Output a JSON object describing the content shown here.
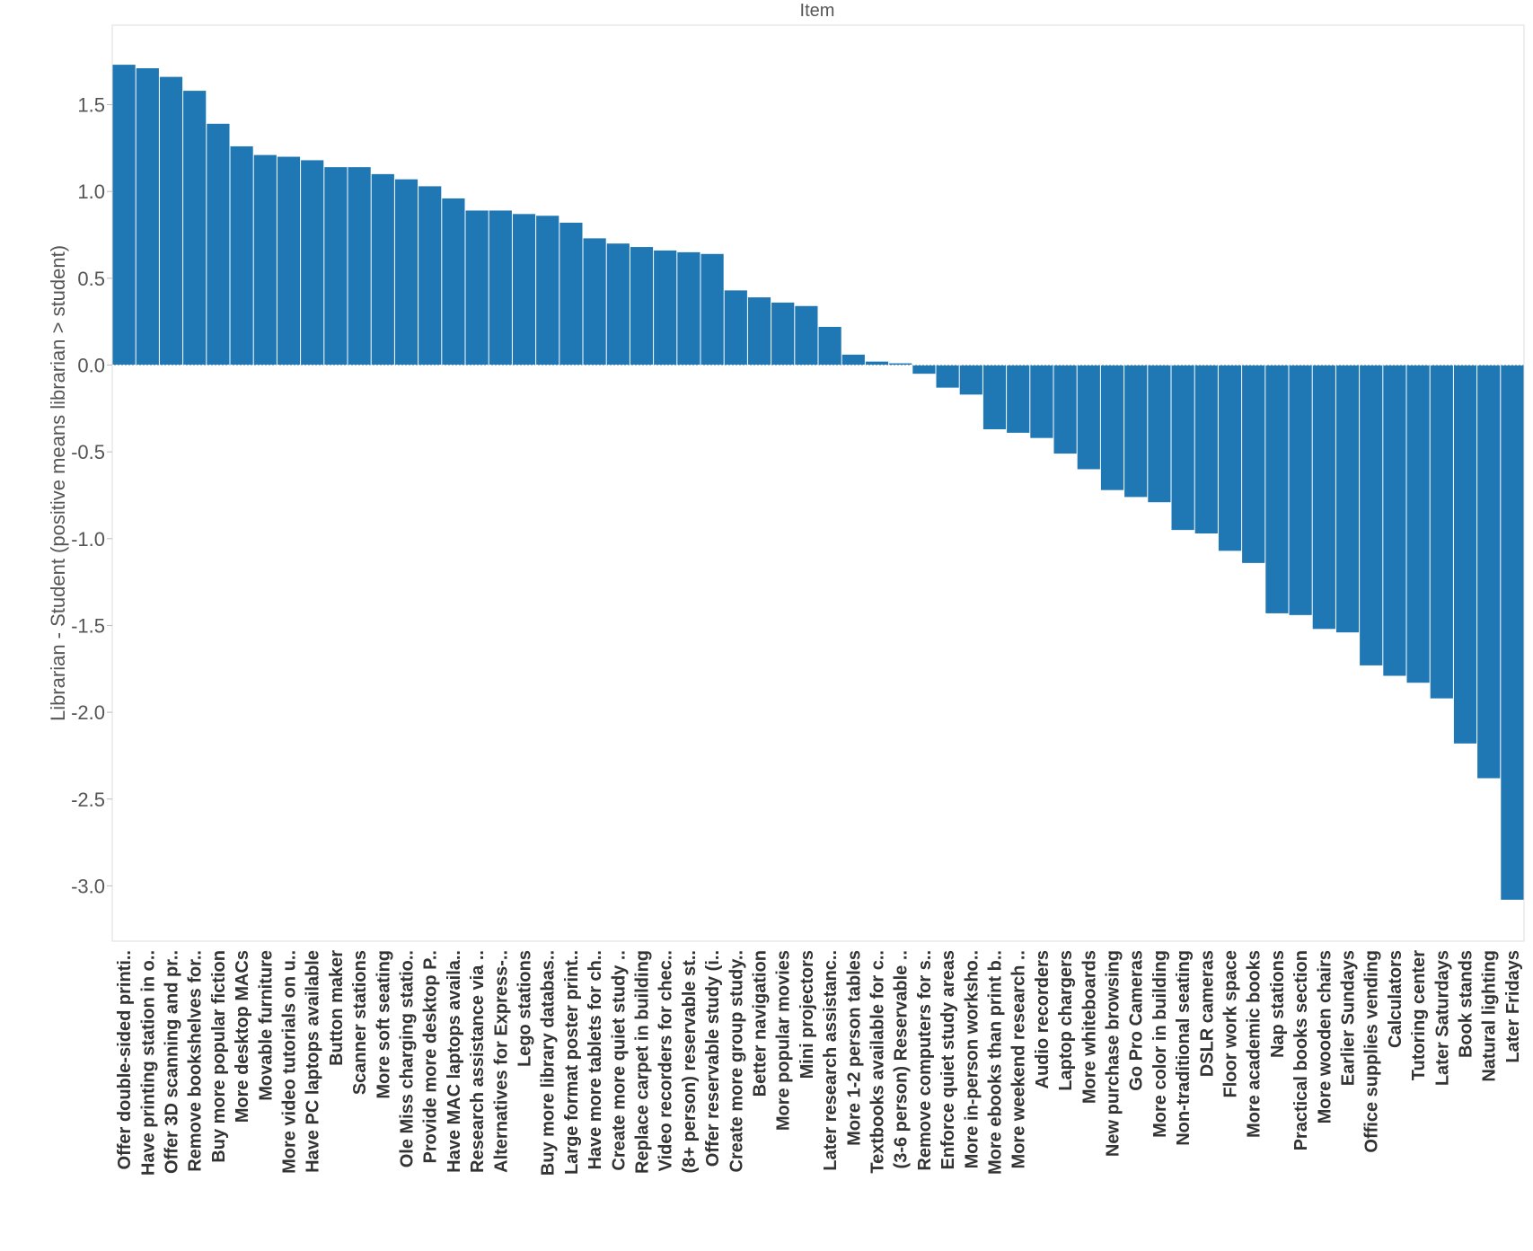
{
  "chart_data": {
    "type": "bar",
    "title": "Item",
    "ylabel": "Librarian - Student (positive means librarian > student)",
    "xlabel": "",
    "ylim": [
      -3.25,
      1.95
    ],
    "yticks": [
      1.5,
      1.0,
      0.5,
      0.0,
      -0.5,
      -1.0,
      -1.5,
      -2.0,
      -2.5,
      -3.0
    ],
    "ytick_labels": [
      "1.5",
      "1.0",
      "0.5",
      "0.0",
      "-0.5",
      "-1.0",
      "-1.5",
      "-2.0",
      "-2.5",
      "-3.0"
    ],
    "grid": false,
    "bar_color": "#1f77b4",
    "categories": [
      "Offer double-sided printi..",
      "Have printing station in o..",
      "Offer 3D scanning and pr..",
      "Remove bookshelves for..",
      "Buy more popular fiction",
      "More desktop MACs",
      "Movable furniture",
      "More video tutorials on u..",
      "Have PC laptops available",
      "Button maker",
      "Scanner stations",
      "More soft seating",
      "Ole Miss charging statio..",
      "Provide more desktop P..",
      "Have MAC laptops availa..",
      "Research assistance via ..",
      "Alternatives for Express-..",
      "Lego stations",
      "Buy more library databas..",
      "Large format poster print..",
      "Have more tablets for ch..",
      "Create more quiet study ..",
      "Replace carpet in building",
      "Video recorders for chec..",
      "(8+ person) reservable st..",
      "Offer reservable study (i..",
      "Create more group study..",
      "Better navigation",
      "More popular movies",
      "Mini projectors",
      "Later research assistanc..",
      "More 1-2 person tables",
      "Textbooks available for c..",
      "(3-6 person) Reservable ..",
      "Remove computers for s..",
      "Enforce quiet study areas",
      "More in-person worksho..",
      "More ebooks than print b..",
      "More weekend research ..",
      "Audio recorders",
      "Laptop chargers",
      "More whiteboards",
      "New purchase browsing",
      "Go Pro Cameras",
      "More color in building",
      "Non-traditional seating",
      "DSLR cameras",
      "Floor work space",
      "More academic books",
      "Nap stations",
      "Practical books section",
      "More wooden chairs",
      "Earlier Sundays",
      "Office supplies vending",
      "Calculators",
      "Tutoring center",
      "Later Saturdays",
      "Book stands",
      "Natural lighting",
      "Later Fridays"
    ],
    "values": [
      1.73,
      1.71,
      1.66,
      1.58,
      1.39,
      1.26,
      1.21,
      1.2,
      1.18,
      1.14,
      1.14,
      1.1,
      1.07,
      1.03,
      0.96,
      0.89,
      0.89,
      0.87,
      0.86,
      0.82,
      0.73,
      0.7,
      0.68,
      0.66,
      0.65,
      0.64,
      0.43,
      0.39,
      0.36,
      0.34,
      0.22,
      0.06,
      0.02,
      0.01,
      -0.05,
      -0.13,
      -0.17,
      -0.37,
      -0.39,
      -0.42,
      -0.51,
      -0.6,
      -0.72,
      -0.76,
      -0.79,
      -0.95,
      -0.97,
      -1.07,
      -1.14,
      -1.43,
      -1.44,
      -1.52,
      -1.54,
      -1.73,
      -1.79,
      -1.83,
      -1.92,
      -2.18,
      -2.38,
      -3.08
    ]
  }
}
